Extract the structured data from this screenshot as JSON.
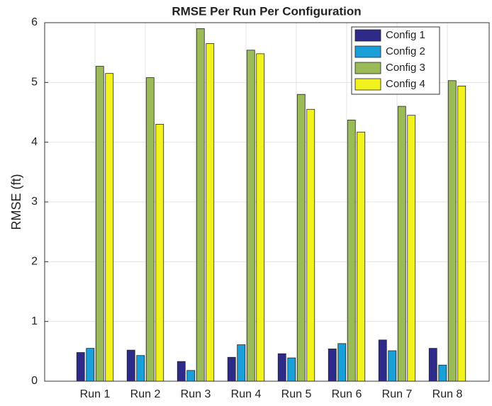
{
  "chart_data": {
    "type": "bar",
    "title": "RMSE Per Run Per Configuration",
    "ylabel": "RMSE (ft)",
    "categories": [
      "Run 1",
      "Run 2",
      "Run 3",
      "Run 4",
      "Run 5",
      "Run 6",
      "Run 7",
      "Run 8"
    ],
    "series": [
      {
        "name": "Config 1",
        "color": "#2e2a8a",
        "values": [
          0.48,
          0.52,
          0.33,
          0.4,
          0.46,
          0.54,
          0.69,
          0.55
        ]
      },
      {
        "name": "Config 2",
        "color": "#1aa0d8",
        "values": [
          0.55,
          0.43,
          0.18,
          0.61,
          0.39,
          0.63,
          0.51,
          0.27
        ]
      },
      {
        "name": "Config 3",
        "color": "#9bbb59",
        "values": [
          5.27,
          5.08,
          5.9,
          5.54,
          4.8,
          4.37,
          4.6,
          5.03
        ]
      },
      {
        "name": "Config 4",
        "color": "#f2f21e",
        "values": [
          5.15,
          4.3,
          5.65,
          5.48,
          4.55,
          4.17,
          4.45,
          4.94
        ]
      }
    ],
    "ylim": [
      0,
      6
    ],
    "yticks": [
      0,
      1,
      2,
      3,
      4,
      5,
      6
    ],
    "grid": true,
    "legend": "northeast"
  }
}
